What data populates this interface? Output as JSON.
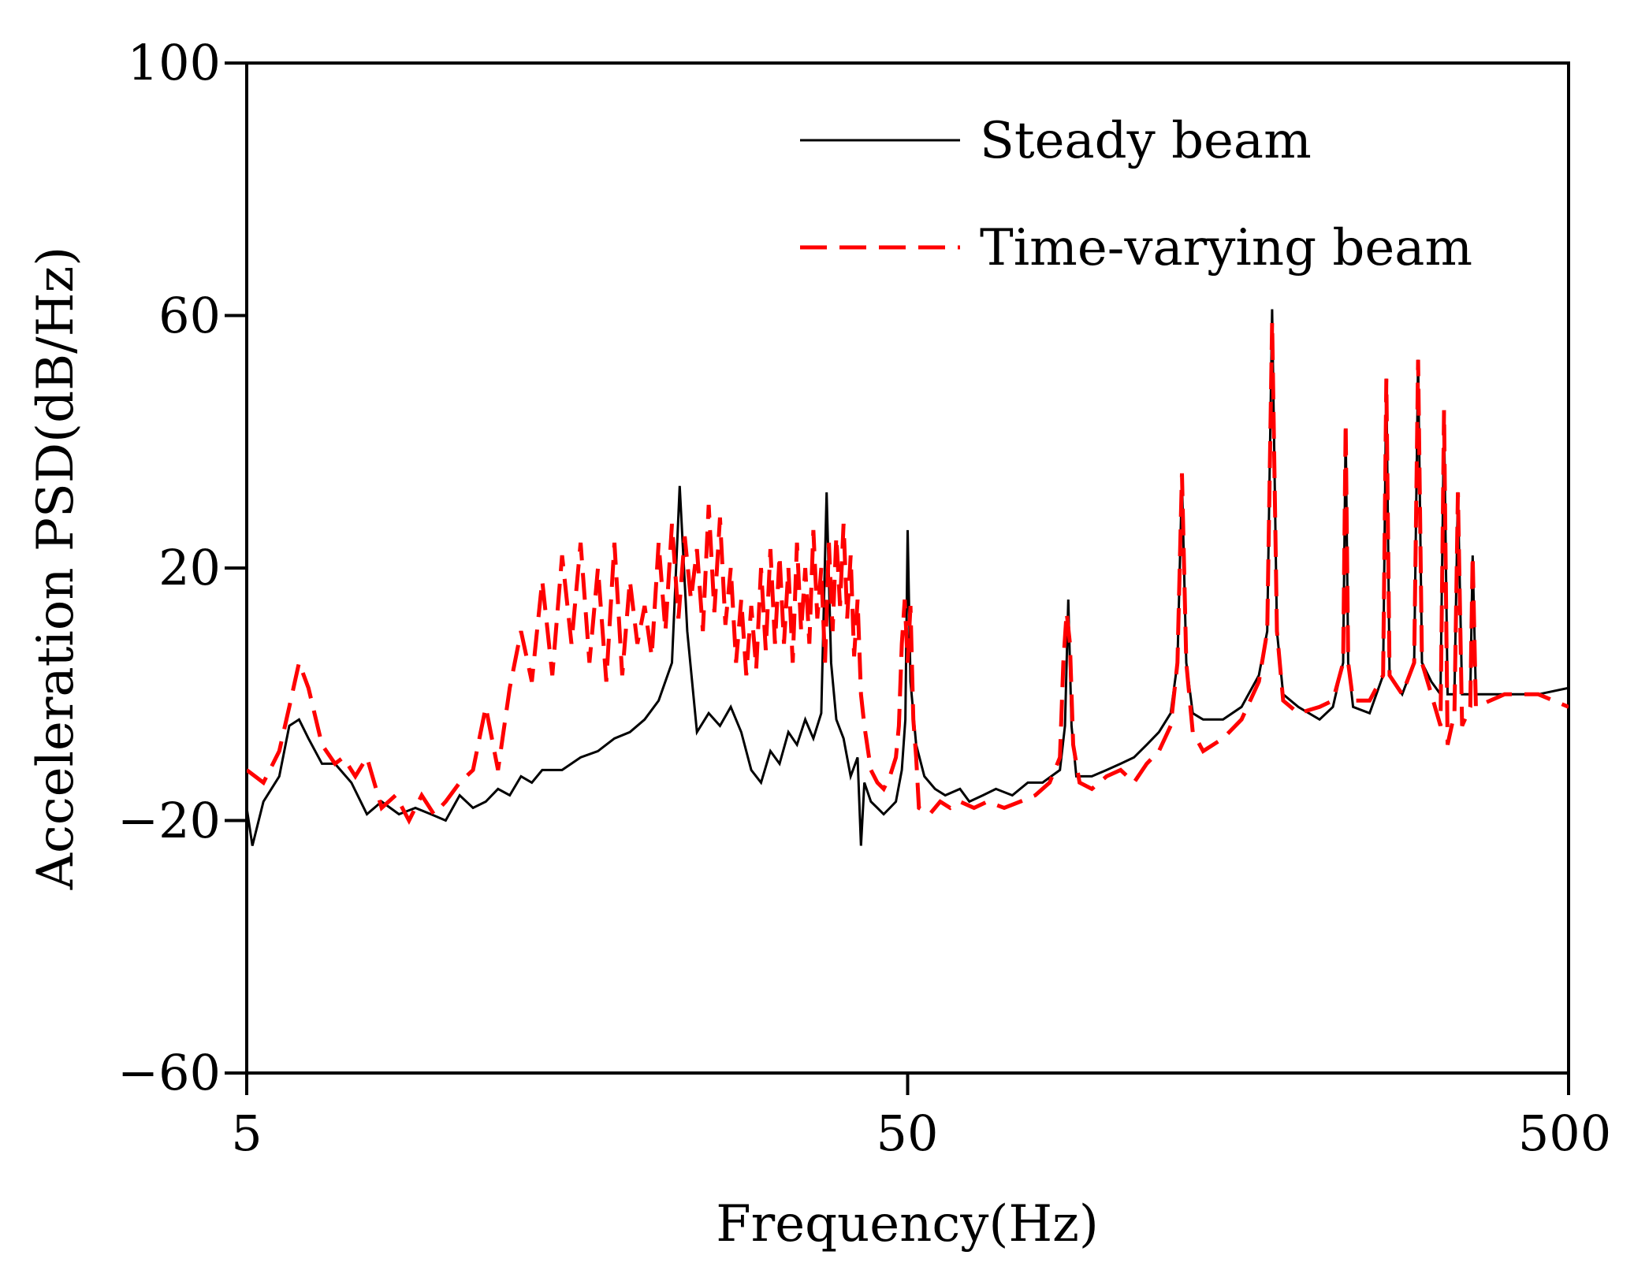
{
  "chart_data": {
    "type": "line",
    "xscale": "log",
    "xlabel": "Frequency(Hz)",
    "ylabel": "Acceleration PSD(dB/Hz)",
    "xlim": [
      5,
      500
    ],
    "ylim": [
      -60,
      100
    ],
    "xticks": [
      5,
      50,
      500
    ],
    "xtick_labels": [
      "5",
      "50",
      "500"
    ],
    "yticks": [
      -60,
      -20,
      20,
      60,
      100
    ],
    "ytick_labels": [
      "−60",
      "−20",
      "20",
      "60",
      "100"
    ],
    "legend_position": "top-right",
    "grid": false,
    "series": [
      {
        "name": "Steady beam",
        "color": "#000000",
        "style": "solid",
        "points": [
          [
            5.0,
            -18
          ],
          [
            5.1,
            -24
          ],
          [
            5.3,
            -17
          ],
          [
            5.6,
            -13
          ],
          [
            5.8,
            -5
          ],
          [
            6.0,
            -4
          ],
          [
            6.2,
            -7
          ],
          [
            6.5,
            -11
          ],
          [
            6.8,
            -11
          ],
          [
            7.2,
            -14
          ],
          [
            7.6,
            -19
          ],
          [
            8.0,
            -17
          ],
          [
            8.5,
            -19
          ],
          [
            9.0,
            -18
          ],
          [
            9.5,
            -19
          ],
          [
            10.0,
            -20
          ],
          [
            10.5,
            -16
          ],
          [
            11.0,
            -18
          ],
          [
            11.5,
            -17
          ],
          [
            12.0,
            -15
          ],
          [
            12.5,
            -16
          ],
          [
            13.0,
            -13
          ],
          [
            13.5,
            -14
          ],
          [
            14.0,
            -12
          ],
          [
            15.0,
            -12
          ],
          [
            16.0,
            -10
          ],
          [
            17.0,
            -9
          ],
          [
            18.0,
            -7
          ],
          [
            19.0,
            -6
          ],
          [
            20.0,
            -4
          ],
          [
            21.0,
            -1
          ],
          [
            22.0,
            5
          ],
          [
            22.6,
            33
          ],
          [
            23.2,
            10
          ],
          [
            24.0,
            -6
          ],
          [
            25.0,
            -3
          ],
          [
            26.0,
            -5
          ],
          [
            27.0,
            -2
          ],
          [
            28.0,
            -6
          ],
          [
            29.0,
            -12
          ],
          [
            30.0,
            -14
          ],
          [
            31.0,
            -9
          ],
          [
            32.0,
            -11
          ],
          [
            33.0,
            -6
          ],
          [
            34.0,
            -8
          ],
          [
            35.0,
            -4
          ],
          [
            36.0,
            -7
          ],
          [
            37.0,
            -3
          ],
          [
            37.7,
            32
          ],
          [
            38.3,
            5
          ],
          [
            39.0,
            -4
          ],
          [
            40.0,
            -7
          ],
          [
            41.0,
            -13
          ],
          [
            42.0,
            -10
          ],
          [
            42.5,
            -24
          ],
          [
            43.0,
            -14
          ],
          [
            44.0,
            -17
          ],
          [
            45.0,
            -18
          ],
          [
            46.0,
            -19
          ],
          [
            47.0,
            -18
          ],
          [
            48.0,
            -17
          ],
          [
            49.0,
            -12
          ],
          [
            49.6,
            -4
          ],
          [
            50.0,
            26
          ],
          [
            50.5,
            2
          ],
          [
            51.5,
            -8
          ],
          [
            53.0,
            -13
          ],
          [
            55.0,
            -15
          ],
          [
            57.0,
            -16
          ],
          [
            60.0,
            -15
          ],
          [
            62.0,
            -17
          ],
          [
            65.0,
            -16
          ],
          [
            68.0,
            -15
          ],
          [
            72.0,
            -16
          ],
          [
            76.0,
            -14
          ],
          [
            80.0,
            -14
          ],
          [
            85.0,
            -12
          ],
          [
            86.5,
            -5
          ],
          [
            87.5,
            15
          ],
          [
            88.5,
            -5
          ],
          [
            90.0,
            -13
          ],
          [
            95.0,
            -13
          ],
          [
            100.0,
            -12
          ],
          [
            105.0,
            -11
          ],
          [
            110.0,
            -10
          ],
          [
            115.0,
            -8
          ],
          [
            120.0,
            -6
          ],
          [
            125.0,
            -3
          ],
          [
            128.0,
            5
          ],
          [
            130.0,
            34
          ],
          [
            132.0,
            5
          ],
          [
            135.0,
            -3
          ],
          [
            140.0,
            -4
          ],
          [
            150.0,
            -4
          ],
          [
            160.0,
            -2
          ],
          [
            170.0,
            3
          ],
          [
            175.0,
            10
          ],
          [
            178.0,
            61
          ],
          [
            181.0,
            10
          ],
          [
            185.0,
            0
          ],
          [
            195.0,
            -2
          ],
          [
            210.0,
            -4
          ],
          [
            220.0,
            -2
          ],
          [
            228.0,
            5
          ],
          [
            230.0,
            42
          ],
          [
            232.0,
            5
          ],
          [
            236.0,
            -2
          ],
          [
            250.0,
            -3
          ],
          [
            262.0,
            3
          ],
          [
            265.0,
            50
          ],
          [
            268.0,
            3
          ],
          [
            280.0,
            0
          ],
          [
            292.0,
            5
          ],
          [
            296.0,
            53
          ],
          [
            300.0,
            5
          ],
          [
            310.0,
            2
          ],
          [
            320.0,
            0
          ],
          [
            324.0,
            44
          ],
          [
            328.0,
            0
          ],
          [
            336.0,
            0
          ],
          [
            340.0,
            32
          ],
          [
            345.0,
            0
          ],
          [
            355.0,
            0
          ],
          [
            358.0,
            22
          ],
          [
            362.0,
            0
          ],
          [
            400.0,
            0
          ],
          [
            450.0,
            0
          ],
          [
            500.0,
            1
          ]
        ]
      },
      {
        "name": "Time-varying beam",
        "color": "#ff0000",
        "style": "dashed",
        "points": [
          [
            5.0,
            -12
          ],
          [
            5.3,
            -14
          ],
          [
            5.6,
            -9
          ],
          [
            5.8,
            -2
          ],
          [
            6.0,
            5
          ],
          [
            6.2,
            1
          ],
          [
            6.5,
            -8
          ],
          [
            6.8,
            -11
          ],
          [
            7.0,
            -10
          ],
          [
            7.3,
            -13
          ],
          [
            7.6,
            -10
          ],
          [
            8.0,
            -18
          ],
          [
            8.4,
            -16
          ],
          [
            8.8,
            -20
          ],
          [
            9.2,
            -16
          ],
          [
            9.6,
            -19
          ],
          [
            10.0,
            -17
          ],
          [
            10.5,
            -14
          ],
          [
            11.0,
            -12
          ],
          [
            11.5,
            -2
          ],
          [
            12.0,
            -12
          ],
          [
            12.5,
            1
          ],
          [
            13.0,
            10
          ],
          [
            13.5,
            2
          ],
          [
            14.0,
            18
          ],
          [
            14.5,
            3
          ],
          [
            15.0,
            22
          ],
          [
            15.5,
            8
          ],
          [
            16.0,
            24
          ],
          [
            16.5,
            5
          ],
          [
            17.0,
            20
          ],
          [
            17.5,
            2
          ],
          [
            18.0,
            24
          ],
          [
            18.5,
            3
          ],
          [
            19.0,
            18
          ],
          [
            19.5,
            8
          ],
          [
            20.0,
            14
          ],
          [
            20.5,
            6
          ],
          [
            21.0,
            24
          ],
          [
            21.5,
            10
          ],
          [
            22.0,
            27
          ],
          [
            22.5,
            12
          ],
          [
            23.0,
            25
          ],
          [
            23.5,
            15
          ],
          [
            24.0,
            23
          ],
          [
            24.5,
            10
          ],
          [
            25.0,
            30
          ],
          [
            25.5,
            13
          ],
          [
            26.0,
            28
          ],
          [
            26.5,
            11
          ],
          [
            27.0,
            20
          ],
          [
            27.5,
            5
          ],
          [
            28.0,
            15
          ],
          [
            28.5,
            3
          ],
          [
            29.0,
            14
          ],
          [
            29.5,
            4
          ],
          [
            30.0,
            20
          ],
          [
            30.5,
            7
          ],
          [
            31.0,
            23
          ],
          [
            31.5,
            8
          ],
          [
            32.0,
            22
          ],
          [
            32.5,
            8
          ],
          [
            33.0,
            20
          ],
          [
            33.5,
            5
          ],
          [
            34.0,
            24
          ],
          [
            34.5,
            10
          ],
          [
            35.0,
            20
          ],
          [
            35.5,
            8
          ],
          [
            36.0,
            26
          ],
          [
            36.5,
            12
          ],
          [
            37.0,
            20
          ],
          [
            37.5,
            5
          ],
          [
            38.0,
            24
          ],
          [
            38.5,
            10
          ],
          [
            39.0,
            25
          ],
          [
            39.5,
            14
          ],
          [
            40.0,
            27
          ],
          [
            40.5,
            12
          ],
          [
            41.0,
            22
          ],
          [
            41.5,
            6
          ],
          [
            42.0,
            15
          ],
          [
            42.5,
            0
          ],
          [
            43.0,
            -5
          ],
          [
            44.0,
            -12
          ],
          [
            45.0,
            -14
          ],
          [
            46.0,
            -15
          ],
          [
            47.0,
            -13
          ],
          [
            48.0,
            -10
          ],
          [
            48.5,
            -5
          ],
          [
            49.0,
            8
          ],
          [
            49.5,
            15
          ],
          [
            50.0,
            5
          ],
          [
            50.5,
            14
          ],
          [
            51.0,
            -4
          ],
          [
            51.5,
            -10
          ],
          [
            52.0,
            -18
          ],
          [
            54.0,
            -19
          ],
          [
            56.0,
            -17
          ],
          [
            58.0,
            -18
          ],
          [
            60.0,
            -17
          ],
          [
            63.0,
            -18
          ],
          [
            66.0,
            -17
          ],
          [
            70.0,
            -18
          ],
          [
            74.0,
            -17
          ],
          [
            78.0,
            -16
          ],
          [
            82.0,
            -14
          ],
          [
            85.0,
            -10
          ],
          [
            86.0,
            5
          ],
          [
            87.0,
            13
          ],
          [
            88.0,
            8
          ],
          [
            89.0,
            -8
          ],
          [
            91.0,
            -14
          ],
          [
            95.0,
            -15
          ],
          [
            100.0,
            -13
          ],
          [
            105.0,
            -12
          ],
          [
            110.0,
            -14
          ],
          [
            115.0,
            -11
          ],
          [
            120.0,
            -9
          ],
          [
            125.0,
            -5
          ],
          [
            128.0,
            5
          ],
          [
            130.0,
            35
          ],
          [
            132.0,
            5
          ],
          [
            135.0,
            -6
          ],
          [
            140.0,
            -9
          ],
          [
            150.0,
            -7
          ],
          [
            160.0,
            -4
          ],
          [
            170.0,
            2
          ],
          [
            175.0,
            10
          ],
          [
            178.0,
            59
          ],
          [
            181.0,
            10
          ],
          [
            185.0,
            -1
          ],
          [
            195.0,
            -3
          ],
          [
            210.0,
            -2
          ],
          [
            220.0,
            -1
          ],
          [
            228.0,
            5
          ],
          [
            230.0,
            43
          ],
          [
            232.0,
            5
          ],
          [
            236.0,
            -1
          ],
          [
            250.0,
            -1
          ],
          [
            262.0,
            3
          ],
          [
            265.0,
            50
          ],
          [
            268.0,
            3
          ],
          [
            280.0,
            0
          ],
          [
            292.0,
            5
          ],
          [
            296.0,
            53
          ],
          [
            300.0,
            5
          ],
          [
            310.0,
            0
          ],
          [
            320.0,
            -5
          ],
          [
            324.0,
            45
          ],
          [
            328.0,
            -8
          ],
          [
            336.0,
            -3
          ],
          [
            340.0,
            32
          ],
          [
            345.0,
            -5
          ],
          [
            355.0,
            -2
          ],
          [
            358.0,
            22
          ],
          [
            362.0,
            -2
          ],
          [
            400.0,
            0
          ],
          [
            450.0,
            0
          ],
          [
            500.0,
            -2
          ]
        ]
      }
    ]
  }
}
